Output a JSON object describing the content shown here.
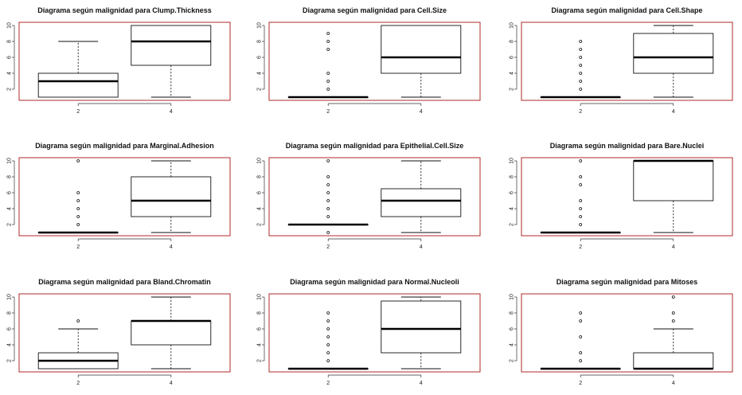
{
  "chart_data": [
    {
      "type": "box",
      "title": "Diagrama según malignidad para Clump.Thickness",
      "categories": [
        "2",
        "4"
      ],
      "yticks": [
        "2",
        "4",
        "6",
        "8",
        "10"
      ],
      "boxes": [
        {
          "category": "2",
          "min": 1,
          "q1": 1,
          "median": 3,
          "q3": 4,
          "max": 8,
          "outliers": []
        },
        {
          "category": "4",
          "min": 1,
          "q1": 5,
          "median": 8,
          "q3": 10,
          "max": 10,
          "outliers": []
        }
      ]
    },
    {
      "type": "box",
      "title": "Diagrama según malignidad para Cell.Size",
      "categories": [
        "2",
        "4"
      ],
      "yticks": [
        "2",
        "4",
        "6",
        "8",
        "10"
      ],
      "boxes": [
        {
          "category": "2",
          "min": 1,
          "q1": 1,
          "median": 1,
          "q3": 1,
          "max": 1,
          "outliers": [
            2,
            3,
            4,
            7,
            8,
            9
          ]
        },
        {
          "category": "4",
          "min": 1,
          "q1": 4,
          "median": 6,
          "q3": 10,
          "max": 10,
          "outliers": []
        }
      ]
    },
    {
      "type": "box",
      "title": "Diagrama según malignidad para Cell.Shape",
      "categories": [
        "2",
        "4"
      ],
      "yticks": [
        "2",
        "4",
        "6",
        "8",
        "10"
      ],
      "boxes": [
        {
          "category": "2",
          "min": 1,
          "q1": 1,
          "median": 1,
          "q3": 1,
          "max": 1,
          "outliers": [
            2,
            3,
            4,
            5,
            6,
            7,
            8
          ]
        },
        {
          "category": "4",
          "min": 1,
          "q1": 4,
          "median": 6,
          "q3": 9,
          "max": 10,
          "outliers": []
        }
      ]
    },
    {
      "type": "box",
      "title": "Diagrama según malignidad para Marginal.Adhesion",
      "categories": [
        "2",
        "4"
      ],
      "yticks": [
        "2",
        "4",
        "6",
        "8",
        "10"
      ],
      "boxes": [
        {
          "category": "2",
          "min": 1,
          "q1": 1,
          "median": 1,
          "q3": 1,
          "max": 1,
          "outliers": [
            2,
            3,
            4,
            5,
            6,
            10
          ]
        },
        {
          "category": "4",
          "min": 1,
          "q1": 3,
          "median": 5,
          "q3": 8,
          "max": 10,
          "outliers": []
        }
      ]
    },
    {
      "type": "box",
      "title": "Diagrama según malignidad para Epithelial.Cell.Size",
      "categories": [
        "2",
        "4"
      ],
      "yticks": [
        "2",
        "4",
        "6",
        "8",
        "10"
      ],
      "boxes": [
        {
          "category": "2",
          "min": 2,
          "q1": 2,
          "median": 2,
          "q3": 2,
          "max": 2,
          "outliers": [
            1,
            3,
            4,
            5,
            6,
            7,
            8,
            10
          ]
        },
        {
          "category": "4",
          "min": 1,
          "q1": 3,
          "median": 5,
          "q3": 6.5,
          "max": 10,
          "outliers": []
        }
      ]
    },
    {
      "type": "box",
      "title": "Diagrama según malignidad para Bare.Nuclei",
      "categories": [
        "2",
        "4"
      ],
      "yticks": [
        "2",
        "4",
        "6",
        "8",
        "10"
      ],
      "boxes": [
        {
          "category": "2",
          "min": 1,
          "q1": 1,
          "median": 1,
          "q3": 1,
          "max": 1,
          "outliers": [
            2,
            3,
            4,
            5,
            7,
            8,
            10
          ]
        },
        {
          "category": "4",
          "min": 1,
          "q1": 5,
          "median": 10,
          "q3": 10,
          "max": 10,
          "outliers": []
        }
      ]
    },
    {
      "type": "box",
      "title": "Diagrama según malignidad para Bland.Chromatin",
      "categories": [
        "2",
        "4"
      ],
      "yticks": [
        "2",
        "4",
        "6",
        "8",
        "10"
      ],
      "boxes": [
        {
          "category": "2",
          "min": 1,
          "q1": 1,
          "median": 2,
          "q3": 3,
          "max": 6,
          "outliers": [
            7
          ]
        },
        {
          "category": "4",
          "min": 1,
          "q1": 4,
          "median": 7,
          "q3": 7,
          "max": 10,
          "outliers": []
        }
      ]
    },
    {
      "type": "box",
      "title": "Diagrama según malignidad para Normal.Nucleoli",
      "categories": [
        "2",
        "4"
      ],
      "yticks": [
        "2",
        "4",
        "6",
        "8",
        "10"
      ],
      "boxes": [
        {
          "category": "2",
          "min": 1,
          "q1": 1,
          "median": 1,
          "q3": 1,
          "max": 1,
          "outliers": [
            2,
            3,
            4,
            5,
            6,
            7,
            8
          ]
        },
        {
          "category": "4",
          "min": 1,
          "q1": 3,
          "median": 6,
          "q3": 9.5,
          "max": 10,
          "outliers": []
        }
      ]
    },
    {
      "type": "box",
      "title": "Diagrama según malignidad para Mitoses",
      "categories": [
        "2",
        "4"
      ],
      "yticks": [
        "2",
        "4",
        "6",
        "8",
        "10"
      ],
      "boxes": [
        {
          "category": "2",
          "min": 1,
          "q1": 1,
          "median": 1,
          "q3": 1,
          "max": 1,
          "outliers": [
            2,
            3,
            5,
            7,
            8
          ]
        },
        {
          "category": "4",
          "min": 1,
          "q1": 1,
          "median": 1,
          "q3": 3,
          "max": 6,
          "outliers": [
            7,
            8,
            10
          ]
        }
      ]
    }
  ]
}
